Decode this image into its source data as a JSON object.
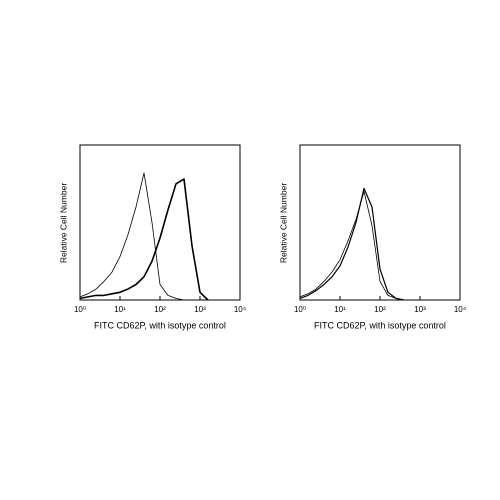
{
  "chart_data": [
    {
      "type": "line",
      "xlabel": "FITC CD62P, with isotype control",
      "ylabel": "Relative Cell Number",
      "x": [
        1,
        1.58,
        2.51,
        3.98,
        6.31,
        10,
        15.8,
        25.1,
        39.8,
        63.1,
        100,
        158,
        251,
        398,
        631,
        1000,
        1585
      ],
      "series": [
        {
          "color": "#000000",
          "line_width": 0.8,
          "values": [
            2,
            4,
            7,
            12,
            18,
            28,
            42,
            60,
            82,
            50,
            10,
            3,
            1,
            0,
            null,
            null,
            null
          ]
        },
        {
          "color": "#000000",
          "line_width": 1.6,
          "values": [
            1,
            2,
            3,
            3,
            4,
            5,
            7,
            10,
            15,
            25,
            40,
            58,
            75,
            78,
            35,
            5,
            0
          ]
        }
      ],
      "xscale": "log",
      "xlim": [
        1,
        10000
      ],
      "ylim": [
        0,
        100
      ],
      "xticks": [
        {
          "value": 1,
          "label": "10⁰"
        },
        {
          "value": 10,
          "label": "10¹"
        },
        {
          "value": 100,
          "label": "10²"
        },
        {
          "value": 1000,
          "label": "10³"
        },
        {
          "value": 10000,
          "label": "10⁴"
        }
      ]
    },
    {
      "type": "line",
      "xlabel": "FITC CD62P, with isotype control",
      "ylabel": "Relative Cell Number",
      "x": [
        1,
        1.58,
        2.51,
        3.98,
        6.31,
        10,
        15.8,
        25.1,
        39.8,
        63.1,
        100,
        158,
        251,
        398
      ],
      "series": [
        {
          "color": "#000000",
          "line_width": 0.8,
          "values": [
            2,
            4,
            7,
            12,
            18,
            26,
            38,
            52,
            70,
            48,
            12,
            3,
            1,
            0
          ]
        },
        {
          "color": "#000000",
          "line_width": 1.2,
          "values": [
            1,
            3,
            6,
            10,
            15,
            22,
            34,
            50,
            72,
            60,
            20,
            5,
            1,
            0
          ]
        }
      ],
      "xscale": "log",
      "xlim": [
        1,
        10000
      ],
      "ylim": [
        0,
        100
      ],
      "xticks": [
        {
          "value": 1,
          "label": "10⁰"
        },
        {
          "value": 10,
          "label": "10¹"
        },
        {
          "value": 100,
          "label": "10²"
        },
        {
          "value": 1000,
          "label": "10³"
        },
        {
          "value": 10000,
          "label": "10⁴"
        }
      ]
    }
  ]
}
